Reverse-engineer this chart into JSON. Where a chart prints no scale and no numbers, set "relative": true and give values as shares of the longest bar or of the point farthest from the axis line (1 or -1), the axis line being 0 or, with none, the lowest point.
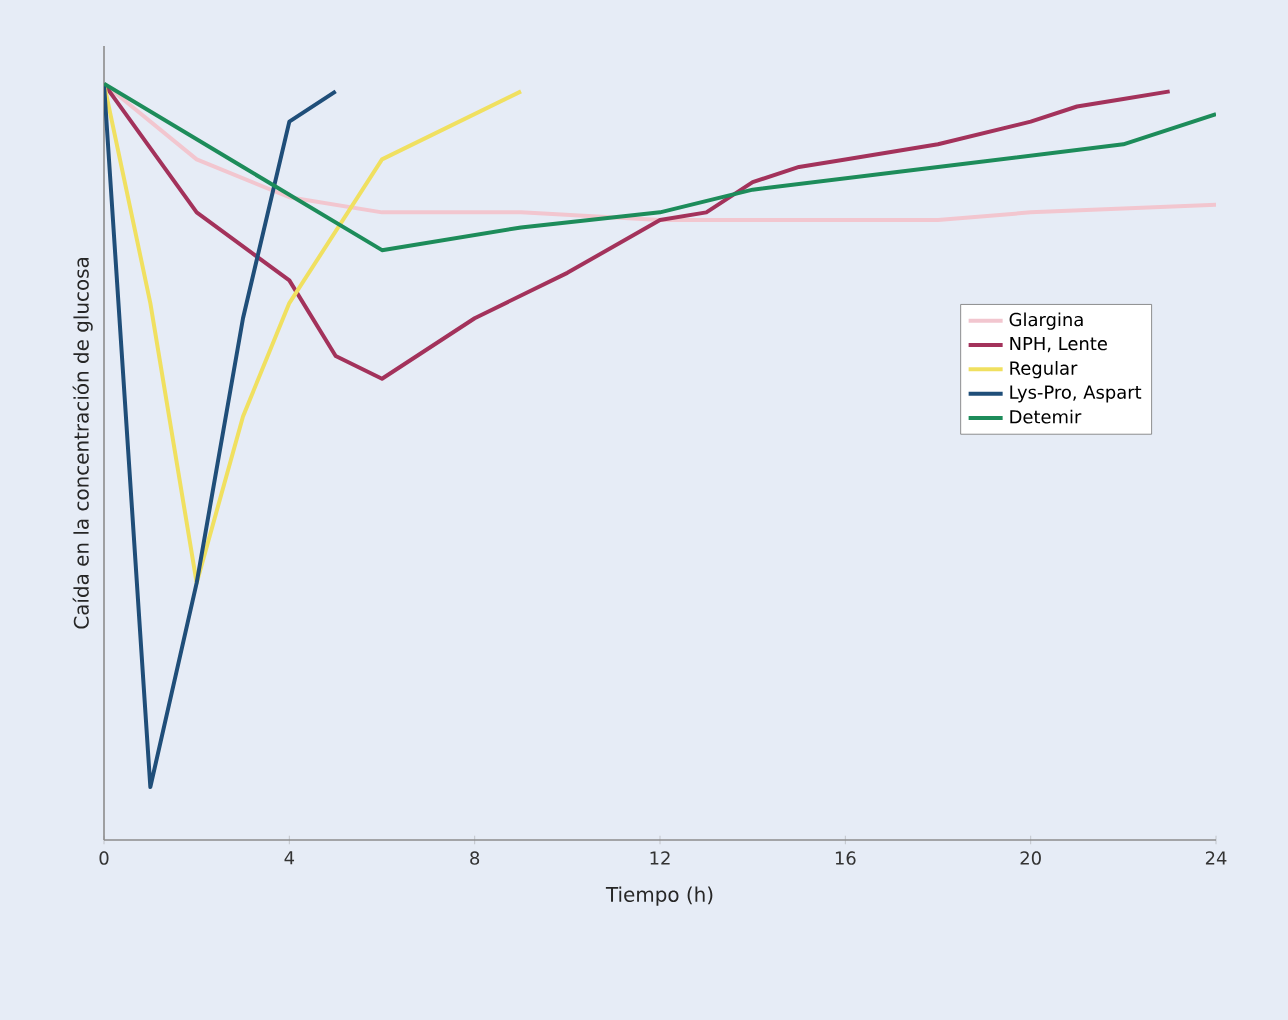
{
  "chart_data": {
    "type": "line",
    "xlabel": "Tiempo (h)",
    "ylabel": "Caída en la concentración de glucosa",
    "relative": true,
    "xlim": [
      0,
      24
    ],
    "xticks": [
      0,
      4,
      8,
      12,
      16,
      20,
      24
    ],
    "legend": "right",
    "line_style": "solid",
    "series": [
      {
        "name": "Glargina",
        "color": "#f2c6cf",
        "x": [
          0,
          2,
          4,
          6,
          9,
          12,
          14,
          16,
          18,
          20,
          24
        ],
        "values": [
          1.0,
          0.9,
          0.85,
          0.83,
          0.83,
          0.82,
          0.82,
          0.82,
          0.82,
          0.83,
          0.84
        ]
      },
      {
        "name": "NPH, Lente",
        "color": "#a3325b",
        "x": [
          0,
          2,
          4,
          5,
          6,
          8,
          10,
          12,
          13,
          14,
          15,
          16,
          18,
          20,
          21,
          22,
          23
        ],
        "values": [
          1.0,
          0.83,
          0.74,
          0.64,
          0.61,
          0.69,
          0.75,
          0.82,
          0.83,
          0.87,
          0.89,
          0.9,
          0.92,
          0.95,
          0.97,
          0.98,
          0.99
        ]
      },
      {
        "name": "Regular",
        "color": "#f0e060",
        "x": [
          0,
          1,
          2,
          3,
          4,
          6,
          9
        ],
        "values": [
          1.0,
          0.71,
          0.34,
          0.56,
          0.71,
          0.9,
          0.99
        ]
      },
      {
        "name": "Lys-Pro, Aspart",
        "color": "#1f4e79",
        "x": [
          0,
          1,
          2,
          3,
          4,
          5
        ],
        "values": [
          1.0,
          0.07,
          0.34,
          0.69,
          0.95,
          0.99
        ]
      },
      {
        "name": "Detemir",
        "color": "#1d8c5a",
        "x": [
          0,
          3,
          6,
          9,
          12,
          14,
          18,
          22,
          24
        ],
        "values": [
          1.0,
          0.89,
          0.78,
          0.81,
          0.83,
          0.86,
          0.89,
          0.92,
          0.96
        ]
      }
    ]
  }
}
